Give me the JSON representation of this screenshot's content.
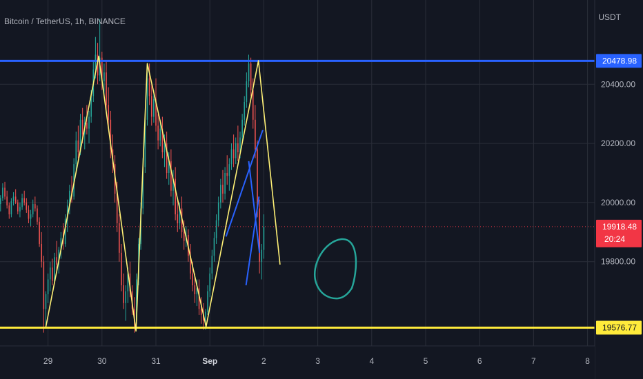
{
  "header": {
    "symbol": "Bitcoin / TetherUS, 1h, BINANCE",
    "currency": "USDT"
  },
  "chart_data": {
    "type": "candlestick",
    "x_ticks": [
      "29",
      "30",
      "31",
      "Sep",
      "2",
      "3",
      "4",
      "5",
      "6",
      "7",
      "8"
    ],
    "y_ticks": [
      20400,
      20200,
      20000,
      19800
    ],
    "y_tick_labels": [
      "20400.00",
      "20200.00",
      "20000.00",
      "19800.00"
    ],
    "ylim": [
      19515,
      20685
    ],
    "grid": true,
    "colors": {
      "background": "#131722",
      "grid": "#2a2e39",
      "up": "#26a69a",
      "down": "#ef5350",
      "resistance": "#2962ff",
      "support": "#ffeb3b",
      "pattern": "#fff176",
      "trendline": "#2962ff",
      "circle": "#26a69a",
      "last_price": "#f23645"
    },
    "levels": {
      "resistance": {
        "price": 20478.98,
        "label": "20478.98"
      },
      "support": {
        "price": 19576.77,
        "label": "19576.77"
      },
      "last_price": {
        "price": 19918.48,
        "label": "19918.48",
        "countdown": "20:24"
      }
    },
    "zigzag": [
      {
        "t": 28.96,
        "p": 19580
      },
      {
        "t": 29.94,
        "p": 20495
      },
      {
        "t": 30.63,
        "p": 19565
      },
      {
        "t": 30.84,
        "p": 20470
      },
      {
        "t": 31.93,
        "p": 19580
      },
      {
        "t": 32.9,
        "p": 20480
      },
      {
        "t": 33.3,
        "p": 19790
      }
    ],
    "trendlines": [
      {
        "t1": 32.3,
        "p1": 19885,
        "t2": 32.98,
        "p2": 20245
      },
      {
        "t1": 32.72,
        "p1": 20140,
        "t2": 32.92,
        "p2": 19830
      },
      {
        "t1": 32.67,
        "p1": 19720,
        "t2": 32.91,
        "p2": 20020
      }
    ],
    "candles": [
      [
        28.0,
        20010,
        20040,
        19975,
        20030
      ],
      [
        28.04,
        20030,
        20055,
        20000,
        20020
      ],
      [
        28.08,
        20020,
        20035,
        19985,
        19995
      ],
      [
        28.12,
        19995,
        20025,
        19970,
        20015
      ],
      [
        28.16,
        20015,
        20065,
        20005,
        20050
      ],
      [
        28.2,
        20050,
        20070,
        20010,
        20020
      ],
      [
        28.24,
        20020,
        20040,
        19980,
        19990
      ],
      [
        28.28,
        19990,
        20000,
        19945,
        19960
      ],
      [
        28.32,
        19960,
        20015,
        19950,
        20005
      ],
      [
        28.36,
        20005,
        20035,
        19990,
        20020
      ],
      [
        28.4,
        20020,
        20045,
        19995,
        20000
      ],
      [
        28.44,
        20000,
        20010,
        19960,
        19970
      ],
      [
        28.48,
        19970,
        20000,
        19950,
        19985
      ],
      [
        28.52,
        19985,
        20030,
        19975,
        20015
      ],
      [
        28.56,
        20015,
        20040,
        19990,
        20000
      ],
      [
        28.6,
        20000,
        20015,
        19965,
        19975
      ],
      [
        28.64,
        19975,
        19990,
        19930,
        19945
      ],
      [
        28.68,
        19945,
        19975,
        19920,
        19960
      ],
      [
        28.72,
        19960,
        20010,
        19950,
        19995
      ],
      [
        28.76,
        19995,
        20020,
        19970,
        19980
      ],
      [
        28.8,
        19980,
        19990,
        19925,
        19935
      ],
      [
        28.84,
        19935,
        19950,
        19850,
        19860
      ],
      [
        28.88,
        19860,
        19900,
        19780,
        19800
      ],
      [
        28.92,
        19800,
        19820,
        19560,
        19640
      ],
      [
        28.96,
        19640,
        19700,
        19580,
        19690
      ],
      [
        29.0,
        19690,
        19760,
        19660,
        19740
      ],
      [
        29.04,
        19740,
        19800,
        19700,
        19780
      ],
      [
        29.08,
        19780,
        19810,
        19720,
        19735
      ],
      [
        29.12,
        19735,
        19830,
        19725,
        19815
      ],
      [
        29.16,
        19815,
        19870,
        19770,
        19790
      ],
      [
        29.2,
        19790,
        19850,
        19760,
        19840
      ],
      [
        29.24,
        19840,
        19900,
        19810,
        19880
      ],
      [
        29.28,
        19880,
        19930,
        19840,
        19860
      ],
      [
        29.32,
        19860,
        19960,
        19850,
        19945
      ],
      [
        29.36,
        19945,
        20010,
        19900,
        19990
      ],
      [
        29.4,
        19990,
        20060,
        19960,
        20040
      ],
      [
        29.44,
        20040,
        20090,
        20000,
        20020
      ],
      [
        29.48,
        20020,
        20150,
        20010,
        20130
      ],
      [
        29.52,
        20130,
        20240,
        20100,
        20210
      ],
      [
        29.56,
        20210,
        20260,
        20150,
        20170
      ],
      [
        29.6,
        20170,
        20300,
        20160,
        20280
      ],
      [
        29.64,
        20280,
        20320,
        20200,
        20230
      ],
      [
        29.68,
        20230,
        20290,
        20180,
        20270
      ],
      [
        29.72,
        20270,
        20330,
        20230,
        20250
      ],
      [
        29.76,
        20250,
        20310,
        20200,
        20290
      ],
      [
        29.8,
        20290,
        20380,
        20270,
        20360
      ],
      [
        29.84,
        20360,
        20480,
        20340,
        20450
      ],
      [
        29.88,
        20450,
        20560,
        20420,
        20500
      ],
      [
        29.92,
        20500,
        20540,
        20400,
        20430
      ],
      [
        29.96,
        20430,
        20620,
        20410,
        20490
      ],
      [
        30.0,
        20490,
        20510,
        20380,
        20410
      ],
      [
        30.04,
        20410,
        20470,
        20360,
        20440
      ],
      [
        30.08,
        20440,
        20480,
        20300,
        20330
      ],
      [
        30.12,
        20330,
        20390,
        20250,
        20280
      ],
      [
        30.16,
        20280,
        20310,
        20150,
        20180
      ],
      [
        30.2,
        20180,
        20230,
        20100,
        20130
      ],
      [
        30.24,
        20130,
        20160,
        20000,
        20030
      ],
      [
        30.28,
        20030,
        20070,
        19900,
        19930
      ],
      [
        30.32,
        19930,
        19960,
        19800,
        19830
      ],
      [
        30.36,
        19830,
        19860,
        19700,
        19720
      ],
      [
        30.4,
        19720,
        19760,
        19640,
        19660
      ],
      [
        30.44,
        19660,
        19720,
        19600,
        19700
      ],
      [
        30.48,
        19700,
        19780,
        19660,
        19760
      ],
      [
        30.52,
        19760,
        19800,
        19680,
        19700
      ],
      [
        30.56,
        19700,
        19720,
        19620,
        19640
      ],
      [
        30.6,
        19640,
        19680,
        19560,
        19600
      ],
      [
        30.64,
        19600,
        19760,
        19590,
        19740
      ],
      [
        30.68,
        19740,
        19880,
        19720,
        19860
      ],
      [
        30.72,
        19860,
        20000,
        19840,
        19980
      ],
      [
        30.76,
        19980,
        20150,
        19960,
        20120
      ],
      [
        30.8,
        20120,
        20300,
        20100,
        20280
      ],
      [
        30.84,
        20280,
        20460,
        20260,
        20420
      ],
      [
        30.88,
        20420,
        20470,
        20330,
        20360
      ],
      [
        30.92,
        20360,
        20400,
        20260,
        20290
      ],
      [
        30.96,
        20290,
        20380,
        20270,
        20350
      ],
      [
        31.0,
        20350,
        20420,
        20240,
        20260
      ],
      [
        31.04,
        20260,
        20300,
        20180,
        20210
      ],
      [
        31.08,
        20210,
        20280,
        20190,
        20250
      ],
      [
        31.12,
        20250,
        20290,
        20150,
        20170
      ],
      [
        31.16,
        20170,
        20230,
        20120,
        20200
      ],
      [
        31.2,
        20200,
        20240,
        20080,
        20100
      ],
      [
        31.24,
        20100,
        20170,
        20060,
        20140
      ],
      [
        31.28,
        20140,
        20180,
        20020,
        20040
      ],
      [
        31.32,
        20040,
        20110,
        19990,
        20080
      ],
      [
        31.36,
        20080,
        20120,
        19940,
        19960
      ],
      [
        31.4,
        19960,
        20010,
        19900,
        19930
      ],
      [
        31.44,
        19930,
        20000,
        19910,
        19980
      ],
      [
        31.48,
        19980,
        20020,
        19880,
        19900
      ],
      [
        31.52,
        19900,
        19940,
        19840,
        19870
      ],
      [
        31.56,
        19870,
        19920,
        19850,
        19890
      ],
      [
        31.6,
        19890,
        19910,
        19800,
        19820
      ],
      [
        31.64,
        19820,
        19860,
        19740,
        19760
      ],
      [
        31.68,
        19760,
        19800,
        19700,
        19720
      ],
      [
        31.72,
        19720,
        19760,
        19660,
        19690
      ],
      [
        31.76,
        19690,
        19740,
        19650,
        19710
      ],
      [
        31.8,
        19710,
        19740,
        19620,
        19640
      ],
      [
        31.84,
        19640,
        19680,
        19590,
        19620
      ],
      [
        31.88,
        19620,
        19660,
        19570,
        19600
      ],
      [
        31.92,
        19600,
        19640,
        19570,
        19630
      ],
      [
        31.96,
        19630,
        19720,
        19620,
        19700
      ],
      [
        32.0,
        19700,
        19780,
        19680,
        19760
      ],
      [
        32.04,
        19760,
        19840,
        19740,
        19820
      ],
      [
        32.08,
        19820,
        19900,
        19800,
        19880
      ],
      [
        32.12,
        19880,
        19960,
        19860,
        19940
      ],
      [
        32.16,
        19940,
        20020,
        19920,
        20000
      ],
      [
        32.2,
        20000,
        20080,
        19980,
        20060
      ],
      [
        32.24,
        20060,
        20110,
        20000,
        20030
      ],
      [
        32.28,
        20030,
        20120,
        20010,
        20100
      ],
      [
        32.32,
        20100,
        20160,
        20060,
        20090
      ],
      [
        32.36,
        20090,
        20150,
        20040,
        20130
      ],
      [
        32.4,
        20130,
        20200,
        20110,
        20180
      ],
      [
        32.44,
        20180,
        20230,
        20120,
        20150
      ],
      [
        32.48,
        20150,
        20220,
        20130,
        20200
      ],
      [
        32.52,
        20200,
        20260,
        20140,
        20170
      ],
      [
        32.56,
        20170,
        20240,
        20150,
        20220
      ],
      [
        32.6,
        20220,
        20300,
        20200,
        20280
      ],
      [
        32.64,
        20280,
        20360,
        20260,
        20340
      ],
      [
        32.68,
        20340,
        20440,
        20320,
        20410
      ],
      [
        32.72,
        20410,
        20500,
        20390,
        20470
      ],
      [
        32.76,
        20470,
        20490,
        20360,
        20380
      ],
      [
        32.8,
        20380,
        20420,
        20250,
        20280
      ],
      [
        32.84,
        20280,
        20330,
        20150,
        20180
      ],
      [
        32.88,
        20180,
        20210,
        19950,
        19980
      ],
      [
        32.92,
        19980,
        20010,
        19760,
        19800
      ],
      [
        32.96,
        19800,
        19860,
        19740,
        19840
      ],
      [
        33.0,
        19840,
        19960,
        19810,
        19918
      ]
    ]
  }
}
